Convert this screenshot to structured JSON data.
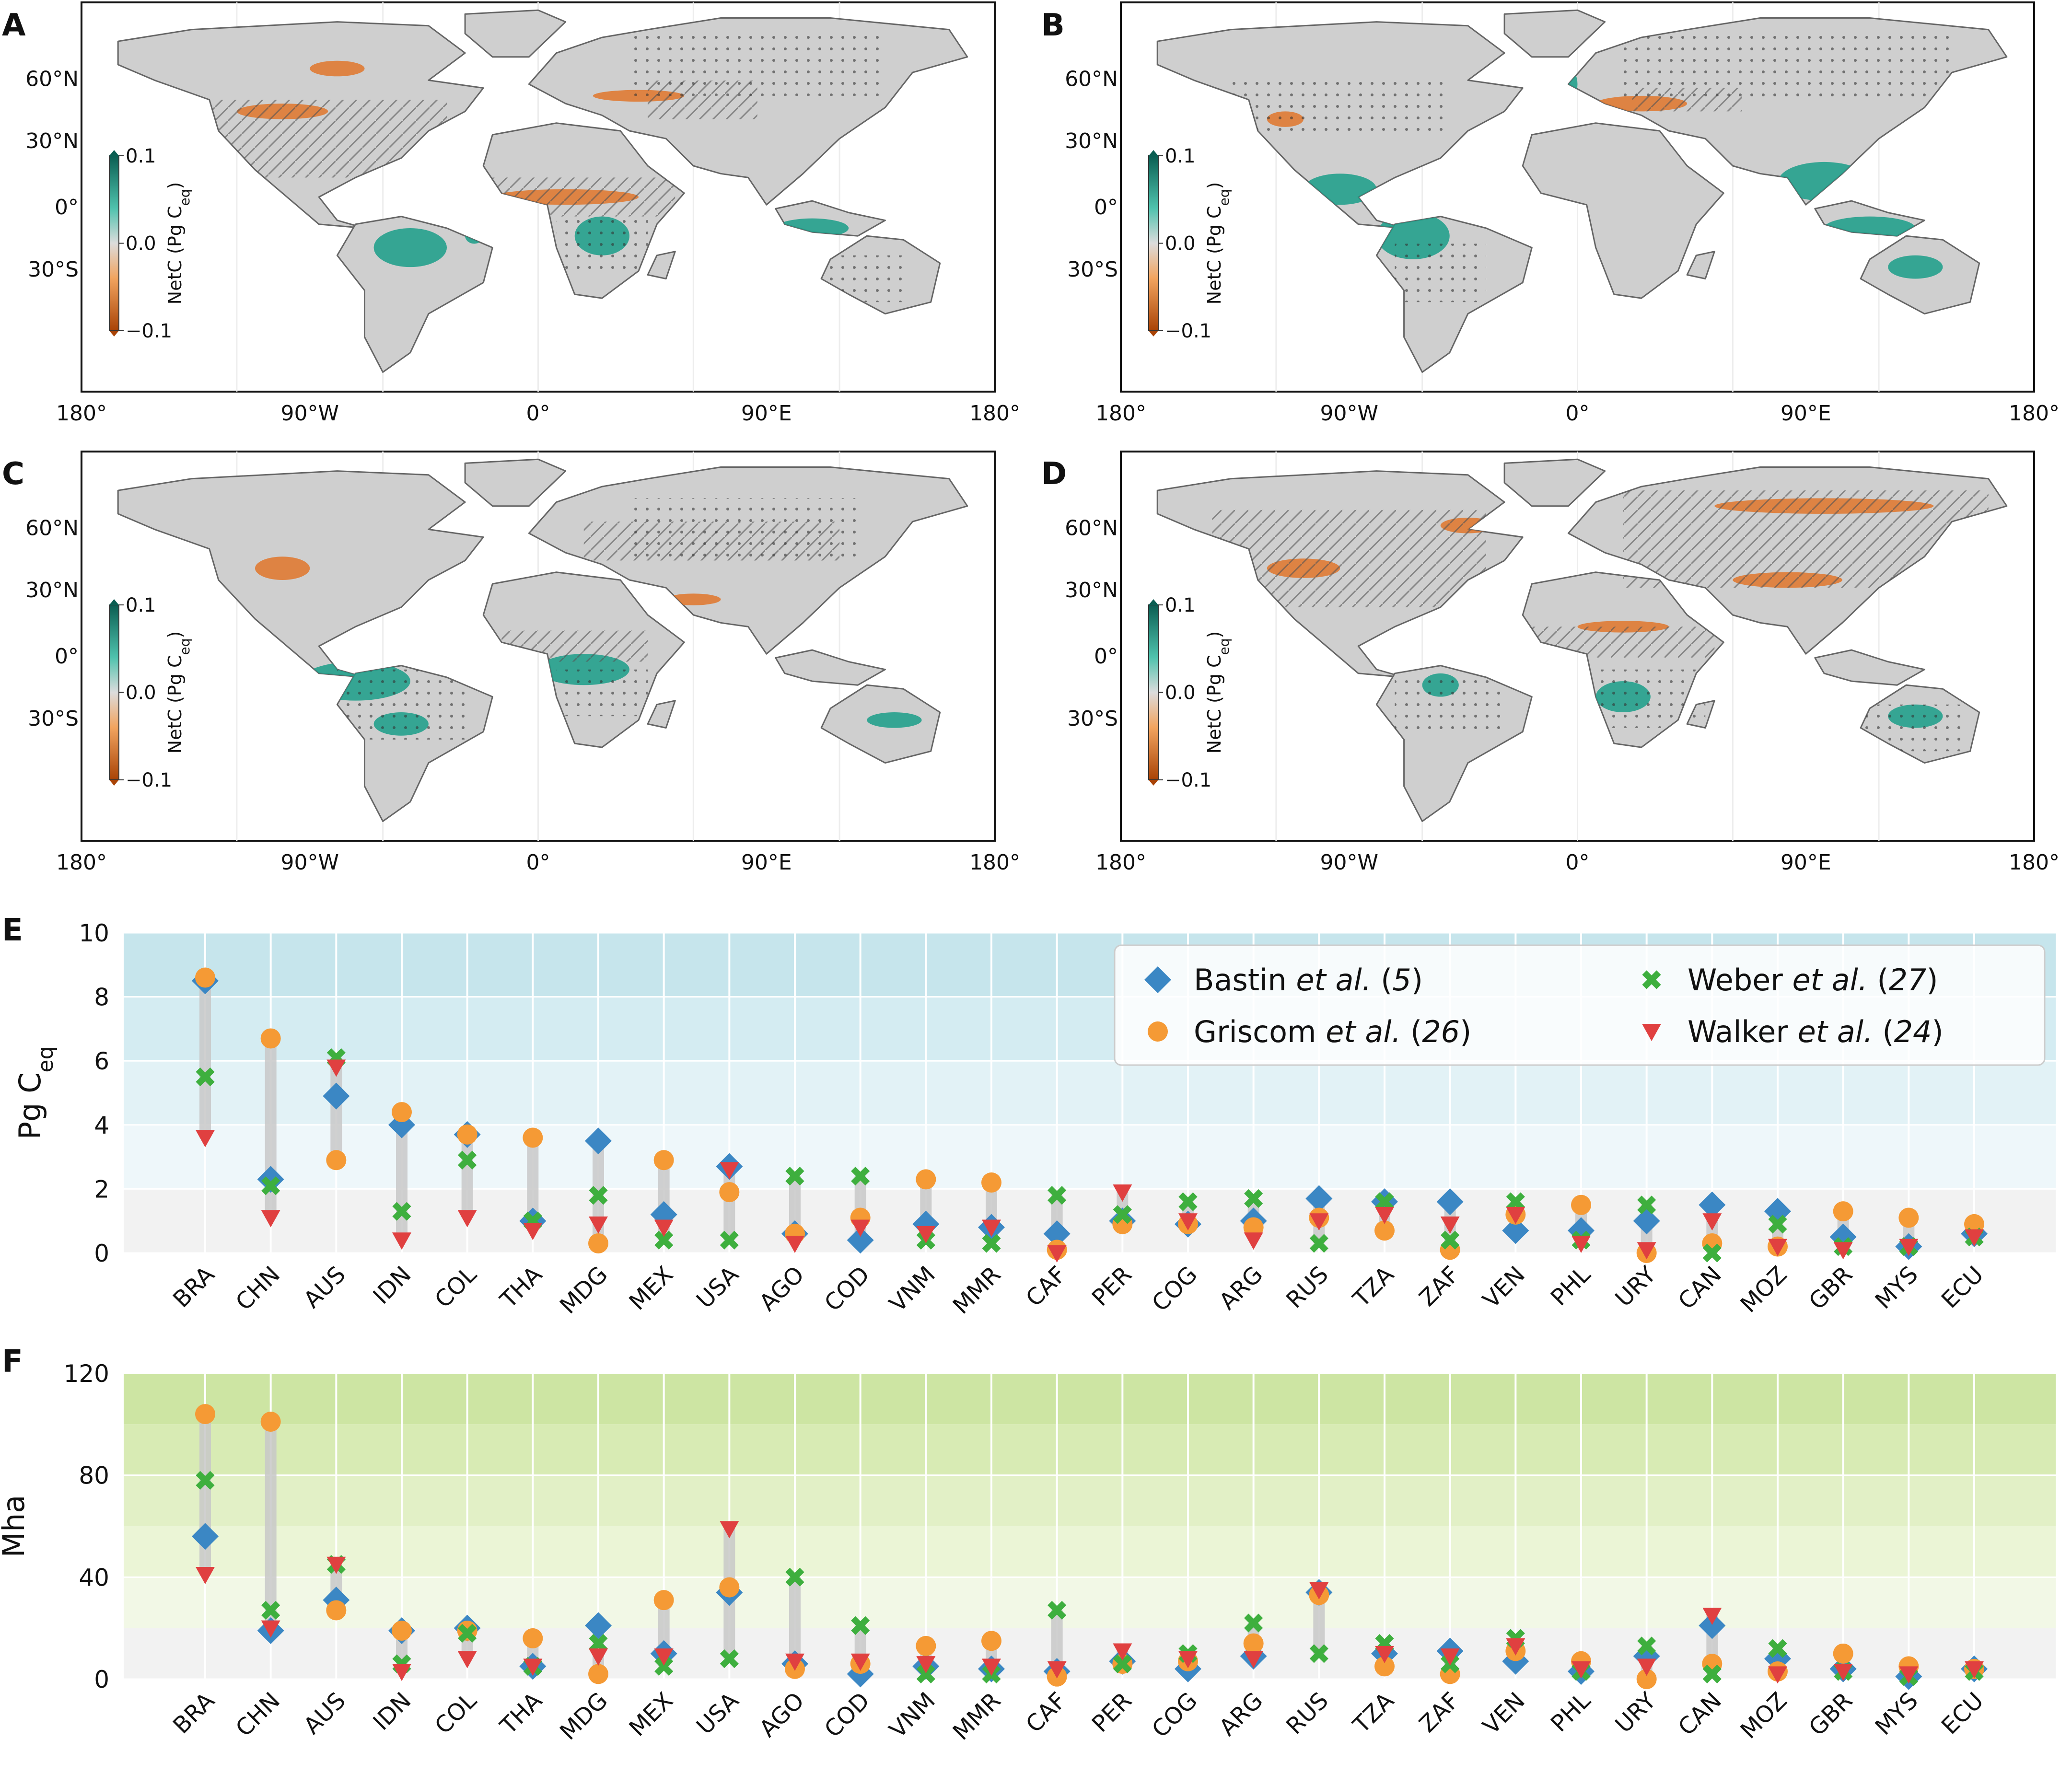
{
  "panel_letters": [
    "A",
    "B",
    "C",
    "D",
    "E",
    "F"
  ],
  "maps": {
    "lat_labels": [
      "60°N",
      "30°N",
      "0°",
      "30°S"
    ],
    "lon_labels": [
      "180°",
      "90°W",
      "0°",
      "90°E",
      "180°"
    ],
    "colorbar_label": "NetC (Pg C",
    "colorbar_label_sub": "eq",
    "colorbar_label_close": ")",
    "colorbar_ticks": [
      "0.1",
      "0.0",
      "−0.1"
    ],
    "colors": {
      "land": "#cfcfcf",
      "gain": "#1a9e88",
      "loss": "#e0762a",
      "neutral": "#d9d9d9"
    }
  },
  "legend": {
    "entries": [
      {
        "name": "Bastin",
        "ref": "(5)",
        "color": "#3b87c4",
        "marker": "diamond"
      },
      {
        "name": "Griscom",
        "ref": "(26)",
        "color": "#f59a35",
        "marker": "circle"
      },
      {
        "name": "Weber",
        "ref": "(27)",
        "color": "#3eaf3e",
        "marker": "x"
      },
      {
        "name": "Walker",
        "ref": "(24)",
        "color": "#e04040",
        "marker": "triangle-down"
      }
    ],
    "etal": "et al."
  },
  "chart_data": [
    {
      "panel": "E",
      "type": "scatter",
      "ylabel": "Pg C",
      "ylabel_sub": "eq",
      "ylim": [
        0,
        10
      ],
      "yticks": [
        "0",
        "2",
        "4",
        "6",
        "8",
        "10"
      ],
      "categories": [
        "BRA",
        "CHN",
        "AUS",
        "IDN",
        "COL",
        "THA",
        "MDG",
        "MEX",
        "USA",
        "AGO",
        "COD",
        "VNM",
        "MMR",
        "CAF",
        "PER",
        "COG",
        "ARG",
        "RUS",
        "TZA",
        "ZAF",
        "VEN",
        "PHL",
        "URY",
        "CAN",
        "MOZ",
        "GBR",
        "MYS",
        "ECU"
      ],
      "series": [
        {
          "name": "Bastin et al. (5)",
          "values": [
            8.5,
            2.3,
            4.9,
            4.0,
            3.7,
            1.0,
            3.5,
            1.2,
            2.7,
            0.6,
            0.4,
            0.9,
            0.8,
            0.6,
            1.0,
            0.9,
            1.0,
            1.7,
            1.6,
            1.6,
            0.7,
            0.7,
            1.0,
            1.5,
            1.3,
            0.5,
            0.2,
            0.6
          ]
        },
        {
          "name": "Griscom et al. (26)",
          "values": [
            8.6,
            6.7,
            2.9,
            4.4,
            3.7,
            3.6,
            0.3,
            2.9,
            1.9,
            0.6,
            1.1,
            2.3,
            2.2,
            0.1,
            0.9,
            0.9,
            0.8,
            1.1,
            0.7,
            0.1,
            1.2,
            1.5,
            0.0,
            0.3,
            0.2,
            1.3,
            1.1,
            0.9
          ]
        },
        {
          "name": "Weber et al. (27)",
          "values": [
            5.5,
            2.1,
            6.1,
            1.3,
            2.9,
            1.0,
            1.8,
            0.4,
            0.4,
            2.4,
            2.4,
            0.4,
            0.3,
            1.8,
            1.2,
            1.6,
            1.7,
            0.3,
            1.6,
            0.4,
            1.6,
            0.4,
            1.5,
            0.0,
            0.9,
            0.2,
            0.2,
            0.5
          ]
        },
        {
          "name": "Walker et al. (24)",
          "values": [
            3.6,
            1.1,
            5.8,
            0.4,
            1.1,
            0.7,
            0.9,
            0.8,
            2.6,
            0.3,
            0.8,
            0.6,
            0.8,
            0.0,
            1.9,
            1.0,
            0.4,
            1.0,
            1.2,
            0.9,
            1.2,
            0.3,
            0.1,
            1.0,
            0.2,
            0.1,
            0.2,
            0.5
          ]
        }
      ]
    },
    {
      "panel": "F",
      "type": "scatter",
      "ylabel": "Mha",
      "ylim": [
        0,
        120
      ],
      "yticks": [
        "0",
        "40",
        "80",
        "120"
      ],
      "categories": [
        "BRA",
        "CHN",
        "AUS",
        "IDN",
        "COL",
        "THA",
        "MDG",
        "MEX",
        "USA",
        "AGO",
        "COD",
        "VNM",
        "MMR",
        "CAF",
        "PER",
        "COG",
        "ARG",
        "RUS",
        "TZA",
        "ZAF",
        "VEN",
        "PHL",
        "URY",
        "CAN",
        "MOZ",
        "GBR",
        "MYS",
        "ECU"
      ],
      "series": [
        {
          "name": "Bastin et al. (5)",
          "values": [
            56,
            19,
            31,
            19,
            20,
            5,
            21,
            10,
            34,
            6,
            2,
            5,
            4,
            3,
            7,
            4,
            9,
            34,
            10,
            11,
            7,
            3,
            9,
            21,
            8,
            4,
            1,
            4
          ]
        },
        {
          "name": "Griscom et al. (26)",
          "values": [
            104,
            101,
            27,
            19,
            19,
            16,
            2,
            31,
            36,
            4,
            6,
            13,
            15,
            1,
            6,
            7,
            14,
            33,
            5,
            2,
            11,
            7,
            0,
            6,
            3,
            10,
            5,
            4
          ]
        },
        {
          "name": "Weber et al. (27)",
          "values": [
            78,
            27,
            45,
            6,
            18,
            5,
            14,
            5,
            8,
            40,
            21,
            2,
            2,
            27,
            6,
            10,
            22,
            10,
            14,
            6,
            16,
            3,
            13,
            2,
            12,
            3,
            1,
            3
          ]
        },
        {
          "name": "Walker et al. (24)",
          "values": [
            41,
            20,
            45,
            3,
            8,
            5,
            9,
            9,
            59,
            7,
            7,
            6,
            5,
            4,
            11,
            8,
            8,
            35,
            10,
            9,
            13,
            4,
            5,
            25,
            2,
            3,
            2,
            4
          ]
        }
      ]
    }
  ]
}
